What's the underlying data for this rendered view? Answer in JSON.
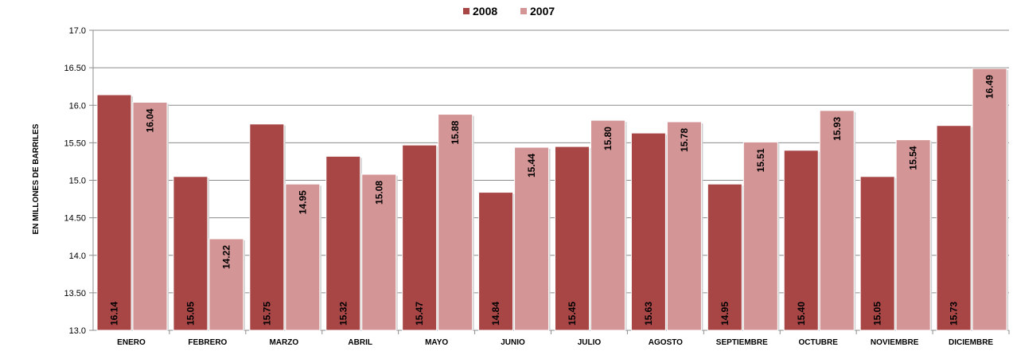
{
  "chart_data": {
    "type": "bar",
    "ylabel": "EN MILLONES DE BARRILES",
    "xlabel": "",
    "ylim": [
      13.0,
      17.0
    ],
    "y_ticks": [
      "13.0",
      "13.50",
      "14.0",
      "14.50",
      "15.0",
      "15.50",
      "16.0",
      "16.50",
      "17.0"
    ],
    "y_tick_values": [
      13.0,
      13.5,
      14.0,
      14.5,
      15.0,
      15.5,
      16.0,
      16.5,
      17.0
    ],
    "grid": true,
    "legend_position": "top-center",
    "categories": [
      "ENERO",
      "FEBRERO",
      "MARZO",
      "ABRIL",
      "MAYO",
      "JUNIO",
      "JULIO",
      "AGOSTO",
      "SEPTIEMBRE",
      "OCTUBRE",
      "NOVIEMBRE",
      "DICIEMBRE"
    ],
    "series": [
      {
        "name": "2008",
        "color": "#a84646",
        "values": [
          16.14,
          15.05,
          15.75,
          15.32,
          15.47,
          14.84,
          15.45,
          15.63,
          14.95,
          15.4,
          15.05,
          15.73
        ],
        "labels": [
          "16.14",
          "15.05",
          "15.75",
          "15.32",
          "15.47",
          "14.84",
          "15.45",
          "15.63",
          "14.95",
          "15.40",
          "15.05",
          "15.73"
        ],
        "label_placement": "inside-base"
      },
      {
        "name": "2007",
        "color": "#d39595",
        "values": [
          16.04,
          14.22,
          14.95,
          15.08,
          15.88,
          15.44,
          15.8,
          15.78,
          15.51,
          15.93,
          15.54,
          16.49
        ],
        "labels": [
          "16.04",
          "14.22",
          "14.95",
          "15.08",
          "15.88",
          "15.44",
          "15.80",
          "15.78",
          "15.51",
          "15.93",
          "15.54",
          "16.49"
        ],
        "label_placement": "inside-top"
      }
    ]
  }
}
